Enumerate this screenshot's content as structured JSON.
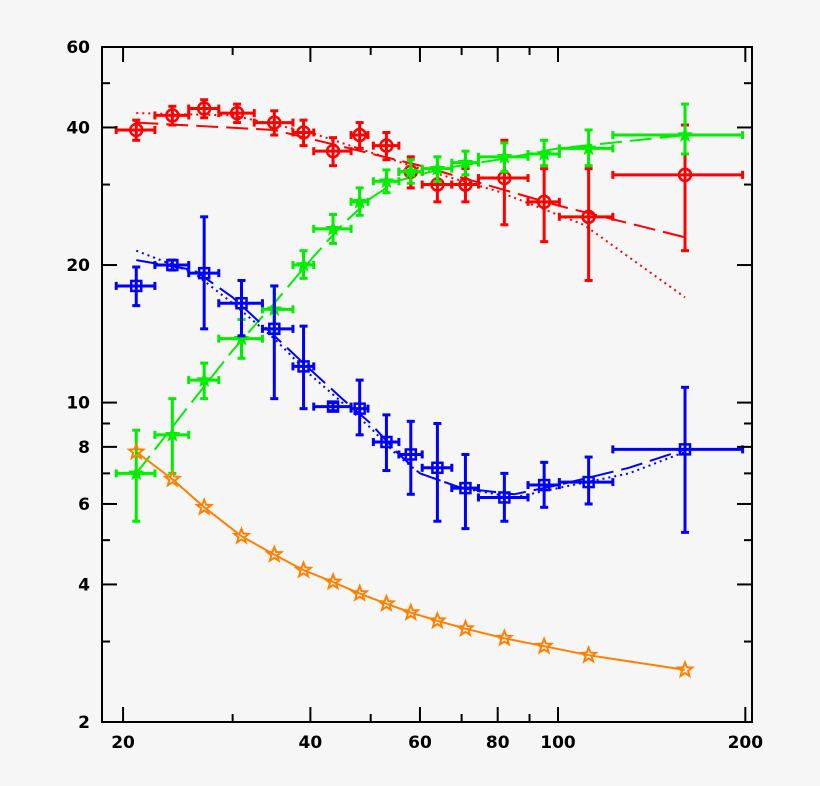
{
  "chart_data": {
    "type": "scatter",
    "title": "",
    "xlabel": "",
    "ylabel": "",
    "x_scale": "log",
    "y_scale": "log",
    "xlim": [
      18.5,
      205
    ],
    "ylim": [
      2,
      60
    ],
    "x_ticks": [
      20,
      40,
      60,
      80,
      100,
      200
    ],
    "x_tick_labels": [
      "20",
      "40",
      "60",
      "80",
      "100",
      "200"
    ],
    "y_ticks": [
      2,
      4,
      6,
      8,
      10,
      20,
      40,
      60
    ],
    "y_tick_labels": [
      "2",
      "4",
      "6",
      "8",
      "10",
      "20",
      "40",
      "60"
    ],
    "grid": false,
    "legend": "none",
    "series": [
      {
        "color": "#ff0000",
        "marker": "circle",
        "points": [
          {
            "x": 21,
            "y": 39.5,
            "xlo": 19.5,
            "xhi": 22.5,
            "ylo": 37.5,
            "yhi": 41.5
          },
          {
            "x": 24,
            "y": 42.5,
            "xlo": 22.5,
            "xhi": 25.5,
            "ylo": 40.5,
            "yhi": 44.5
          },
          {
            "x": 27,
            "y": 44,
            "xlo": 25.5,
            "xhi": 28.5,
            "ylo": 42,
            "yhi": 46
          },
          {
            "x": 30.5,
            "y": 43,
            "xlo": 28.5,
            "xhi": 32.5,
            "ylo": 41,
            "yhi": 45
          },
          {
            "x": 35,
            "y": 41,
            "xlo": 32.5,
            "xhi": 37.5,
            "ylo": 38.5,
            "yhi": 43.5
          },
          {
            "x": 39,
            "y": 39,
            "xlo": 37.5,
            "xhi": 40.5,
            "ylo": 36.5,
            "yhi": 41.5
          },
          {
            "x": 43.5,
            "y": 35.5,
            "xlo": 40.5,
            "xhi": 46.5,
            "ylo": 33,
            "yhi": 38
          },
          {
            "x": 48,
            "y": 38.5,
            "xlo": 46.5,
            "xhi": 49.5,
            "ylo": 36,
            "yhi": 41
          },
          {
            "x": 53,
            "y": 36.5,
            "xlo": 50.5,
            "xhi": 55.5,
            "ylo": 34,
            "yhi": 39
          },
          {
            "x": 58,
            "y": 32,
            "xlo": 55.5,
            "xhi": 60.5,
            "ylo": 29.5,
            "yhi": 34.5
          },
          {
            "x": 64,
            "y": 30,
            "xlo": 60.5,
            "xhi": 67.5,
            "ylo": 27.5,
            "yhi": 32.5
          },
          {
            "x": 71,
            "y": 30,
            "xlo": 67.5,
            "xhi": 74.5,
            "ylo": 27.5,
            "yhi": 32.5
          },
          {
            "x": 82,
            "y": 31,
            "xlo": 74.5,
            "xhi": 89.5,
            "ylo": 24.5,
            "yhi": 37.5
          },
          {
            "x": 95,
            "y": 27.5,
            "xlo": 89.5,
            "xhi": 100.5,
            "ylo": 22.5,
            "yhi": 32.5
          },
          {
            "x": 112,
            "y": 25.5,
            "xlo": 100.5,
            "xhi": 122.5,
            "ylo": 18.5,
            "yhi": 32.5
          },
          {
            "x": 160,
            "y": 31.5,
            "xlo": 122.5,
            "xhi": 198,
            "ylo": 21.5,
            "yhi": 40.5
          }
        ],
        "fit_dashed": [
          [
            21,
            41
          ],
          [
            35,
            39.5
          ],
          [
            60,
            33
          ],
          [
            100,
            27
          ],
          [
            160,
            23
          ]
        ],
        "fit_dotted": [
          [
            21,
            43
          ],
          [
            30,
            42.5
          ],
          [
            40,
            39
          ],
          [
            60,
            32.5
          ],
          [
            80,
            29
          ],
          [
            110,
            24.5
          ],
          [
            160,
            17
          ]
        ]
      },
      {
        "color": "#00ee00",
        "marker": "filled-star",
        "points": [
          {
            "x": 21,
            "y": 7,
            "xlo": 19.5,
            "xhi": 22.5,
            "ylo": 5.5,
            "yhi": 8.7
          },
          {
            "x": 24,
            "y": 8.5,
            "xlo": 22.5,
            "xhi": 25.5,
            "ylo": 7,
            "yhi": 10.2
          },
          {
            "x": 27,
            "y": 11.2,
            "xlo": 25.5,
            "xhi": 28.5,
            "ylo": 10.2,
            "yhi": 12.2
          },
          {
            "x": 31,
            "y": 13.8,
            "xlo": 28.5,
            "xhi": 33.5,
            "ylo": 12.5,
            "yhi": 15.2
          },
          {
            "x": 35,
            "y": 16,
            "xlo": 33.5,
            "xhi": 37.5,
            "ylo": 14.2,
            "yhi": 18
          },
          {
            "x": 39,
            "y": 20,
            "xlo": 37.5,
            "xhi": 40.5,
            "ylo": 18.7,
            "yhi": 21.5
          },
          {
            "x": 43.5,
            "y": 24,
            "xlo": 40.5,
            "xhi": 46.5,
            "ylo": 22.3,
            "yhi": 25.8
          },
          {
            "x": 48,
            "y": 27.5,
            "xlo": 46.5,
            "xhi": 49.5,
            "ylo": 25.7,
            "yhi": 29.5
          },
          {
            "x": 53,
            "y": 30.5,
            "xlo": 50.5,
            "xhi": 55.5,
            "ylo": 28.8,
            "yhi": 32.3
          },
          {
            "x": 58,
            "y": 32,
            "xlo": 55.5,
            "xhi": 60.5,
            "ylo": 30.2,
            "yhi": 34
          },
          {
            "x": 64,
            "y": 32.5,
            "xlo": 60.5,
            "xhi": 67.5,
            "ylo": 30.5,
            "yhi": 34.5
          },
          {
            "x": 71,
            "y": 33.5,
            "xlo": 67.5,
            "xhi": 74.5,
            "ylo": 31.5,
            "yhi": 35.5
          },
          {
            "x": 82,
            "y": 34.5,
            "xlo": 74.5,
            "xhi": 89.5,
            "ylo": 32,
            "yhi": 37
          },
          {
            "x": 95,
            "y": 35,
            "xlo": 89.5,
            "xhi": 100.5,
            "ylo": 33,
            "yhi": 37.5
          },
          {
            "x": 112,
            "y": 36,
            "xlo": 100.5,
            "xhi": 122.5,
            "ylo": 33,
            "yhi": 39.5
          },
          {
            "x": 160,
            "y": 38.5,
            "xlo": 122.5,
            "xhi": 198,
            "ylo": 35,
            "yhi": 45
          }
        ],
        "fit_dashed": [
          [
            21,
            7
          ],
          [
            25,
            9.5
          ],
          [
            30,
            13
          ],
          [
            35,
            16.5
          ],
          [
            40,
            20.5
          ],
          [
            45,
            24.5
          ],
          [
            50,
            28
          ],
          [
            55,
            30.5
          ],
          [
            65,
            32.5
          ],
          [
            80,
            34
          ],
          [
            100,
            36
          ],
          [
            160,
            38.5
          ]
        ]
      },
      {
        "color": "#0000ff",
        "marker": "open-square",
        "points": [
          {
            "x": 21,
            "y": 18,
            "xlo": 19.5,
            "xhi": 22.5,
            "ylo": 16.3,
            "yhi": 19.8
          },
          {
            "x": 24,
            "y": 20,
            "xlo": 22.5,
            "xhi": 25.5,
            "ylo": 19.5,
            "yhi": 20.5
          },
          {
            "x": 27,
            "y": 19.2,
            "xlo": 25.5,
            "xhi": 28.5,
            "ylo": 14.5,
            "yhi": 25.5
          },
          {
            "x": 31,
            "y": 16.5,
            "xlo": 28.5,
            "xhi": 33.5,
            "ylo": 14,
            "yhi": 18.5
          },
          {
            "x": 35,
            "y": 14.5,
            "xlo": 33.5,
            "xhi": 37.5,
            "ylo": 10.2,
            "yhi": 18
          },
          {
            "x": 39,
            "y": 12,
            "xlo": 37.5,
            "xhi": 40.5,
            "ylo": 9.7,
            "yhi": 14.7
          },
          {
            "x": 43.5,
            "y": 9.8,
            "xlo": 40.5,
            "xhi": 46.5,
            "ylo": 9.6,
            "yhi": 10
          },
          {
            "x": 48,
            "y": 9.7,
            "xlo": 46.5,
            "xhi": 49.5,
            "ylo": 8.5,
            "yhi": 11.2
          },
          {
            "x": 53,
            "y": 8.2,
            "xlo": 50.5,
            "xhi": 55.5,
            "ylo": 7.1,
            "yhi": 9.4
          },
          {
            "x": 58,
            "y": 7.7,
            "xlo": 55.5,
            "xhi": 60.5,
            "ylo": 6.3,
            "yhi": 9.1
          },
          {
            "x": 64,
            "y": 7.2,
            "xlo": 60.5,
            "xhi": 67.5,
            "ylo": 5.5,
            "yhi": 9
          },
          {
            "x": 71,
            "y": 6.5,
            "xlo": 67.5,
            "xhi": 74.5,
            "ylo": 5.3,
            "yhi": 7.7
          },
          {
            "x": 82,
            "y": 6.2,
            "xlo": 74.5,
            "xhi": 89.5,
            "ylo": 5.5,
            "yhi": 7
          },
          {
            "x": 95,
            "y": 6.6,
            "xlo": 89.5,
            "xhi": 100.5,
            "ylo": 5.9,
            "yhi": 7.4
          },
          {
            "x": 112,
            "y": 6.7,
            "xlo": 100.5,
            "xhi": 122.5,
            "ylo": 6,
            "yhi": 7.6
          },
          {
            "x": 160,
            "y": 7.9,
            "xlo": 122.5,
            "xhi": 198,
            "ylo": 5.2,
            "yhi": 10.8
          }
        ],
        "fit_dashed": [
          [
            21,
            20.5
          ],
          [
            26,
            19.5
          ],
          [
            30,
            17
          ],
          [
            35,
            14
          ],
          [
            40,
            11.8
          ],
          [
            45,
            10.2
          ],
          [
            50,
            9
          ],
          [
            55,
            7.8
          ],
          [
            60,
            7
          ],
          [
            70,
            6.5
          ],
          [
            85,
            6.3
          ],
          [
            100,
            6.6
          ],
          [
            130,
            7.2
          ],
          [
            160,
            7.9
          ]
        ],
        "fit_dotted": [
          [
            21,
            21.5
          ],
          [
            26,
            19.2
          ],
          [
            30,
            16.5
          ],
          [
            35,
            13.8
          ],
          [
            40,
            11.5
          ],
          [
            45,
            10
          ],
          [
            50,
            8.8
          ],
          [
            55,
            7.7
          ],
          [
            60,
            7
          ],
          [
            70,
            6.5
          ],
          [
            85,
            6.2
          ],
          [
            100,
            6.5
          ],
          [
            130,
            7
          ],
          [
            160,
            7.8
          ]
        ]
      },
      {
        "color": "#ff8000",
        "marker": "open-star",
        "connected": true,
        "points": [
          {
            "x": 21,
            "y": 7.8
          },
          {
            "x": 24,
            "y": 6.8
          },
          {
            "x": 27,
            "y": 5.9
          },
          {
            "x": 31,
            "y": 5.1
          },
          {
            "x": 35,
            "y": 4.65
          },
          {
            "x": 39,
            "y": 4.3
          },
          {
            "x": 43.5,
            "y": 4.05
          },
          {
            "x": 48,
            "y": 3.82
          },
          {
            "x": 53,
            "y": 3.63
          },
          {
            "x": 58,
            "y": 3.47
          },
          {
            "x": 64,
            "y": 3.33
          },
          {
            "x": 71,
            "y": 3.2
          },
          {
            "x": 82,
            "y": 3.05
          },
          {
            "x": 95,
            "y": 2.93
          },
          {
            "x": 112,
            "y": 2.8
          },
          {
            "x": 160,
            "y": 2.6
          }
        ]
      }
    ]
  }
}
